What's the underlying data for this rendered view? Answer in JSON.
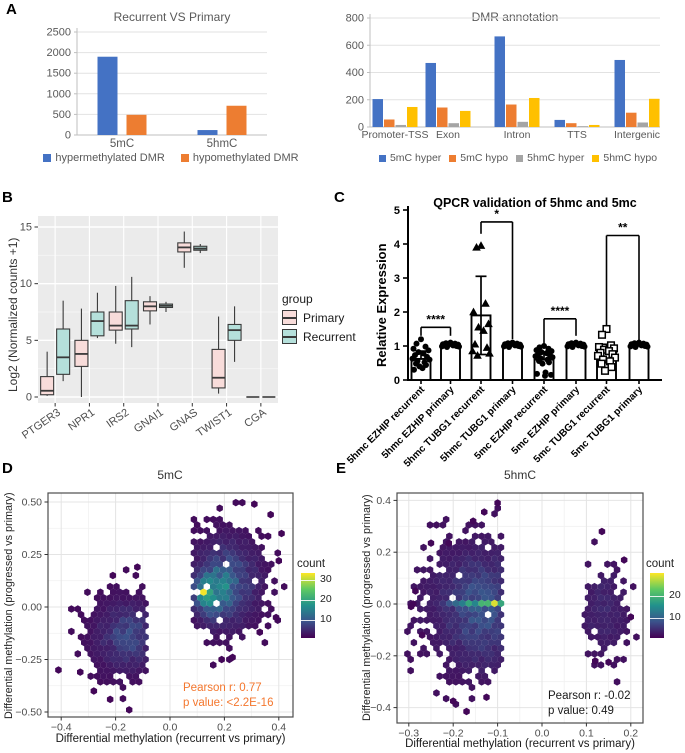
{
  "figure": {
    "background": "#ffffff"
  },
  "panels": {
    "a": {
      "letter": "A"
    },
    "b": {
      "letter": "B"
    },
    "c": {
      "letter": "C"
    },
    "d": {
      "letter": "D"
    },
    "e": {
      "letter": "E"
    }
  },
  "chart_data": [
    {
      "id": "recurrent_vs_primary",
      "type": "bar",
      "title": "Recurrent VS Primary",
      "categories": [
        "5mC",
        "5hmC"
      ],
      "series": [
        {
          "name": "hypermethylated DMR",
          "color": "#4472C4",
          "values": [
            1900,
            120
          ]
        },
        {
          "name": "hypomethylated DMR",
          "color": "#ED7D31",
          "values": [
            490,
            710
          ]
        }
      ],
      "ylim": [
        0,
        2500
      ],
      "ytick_step": 500,
      "grid": true,
      "legend_position": "bottom"
    },
    {
      "id": "dmr_annotation",
      "type": "bar",
      "title": "DMR annotation",
      "categories": [
        "Promoter-TSS",
        "Exon",
        "Intron",
        "TTS",
        "Intergenic"
      ],
      "series": [
        {
          "name": "5mC hyper",
          "color": "#4472C4",
          "values": [
            205,
            470,
            665,
            52,
            492
          ]
        },
        {
          "name": "5mC hypo",
          "color": "#ED7D31",
          "values": [
            55,
            143,
            165,
            28,
            105
          ]
        },
        {
          "name": "5hmC hyper",
          "color": "#A5A5A5",
          "values": [
            15,
            28,
            38,
            6,
            33
          ]
        },
        {
          "name": "5hmC hypo",
          "color": "#FFC000",
          "values": [
            147,
            118,
            213,
            15,
            207
          ]
        }
      ],
      "ylim": [
        0,
        800
      ],
      "ytick_step": 200,
      "grid": true,
      "legend_position": "bottom"
    },
    {
      "id": "expression_boxplot",
      "type": "boxplot",
      "ylabel": "Log2 (Normalized counts +1)",
      "legend_title": "group",
      "groups": [
        {
          "name": "Primary",
          "fill": "#F8DCDA"
        },
        {
          "name": "Recurrent",
          "fill": "#B5E0DB"
        }
      ],
      "categories": [
        "PTGER3",
        "NPR1",
        "IRS2",
        "GNAI1",
        "GNAS",
        "TWIST1",
        "CGA"
      ],
      "ylim": [
        0,
        15
      ],
      "yticks": [
        0,
        5,
        10,
        15
      ],
      "boxes": {
        "Primary": [
          {
            "min": 0.1,
            "q1": 0.2,
            "med": 0.55,
            "q3": 1.8,
            "max": 4.0
          },
          {
            "min": 0.0,
            "q1": 2.7,
            "med": 3.8,
            "q3": 5.0,
            "max": 7.8
          },
          {
            "min": 4.7,
            "q1": 5.9,
            "med": 6.3,
            "q3": 7.5,
            "max": 9.8
          },
          {
            "min": 6.4,
            "q1": 7.6,
            "med": 8.0,
            "q3": 8.4,
            "max": 8.9
          },
          {
            "min": 11.4,
            "q1": 12.8,
            "med": 13.2,
            "q3": 13.6,
            "max": 14.6
          },
          {
            "min": 0.3,
            "q1": 0.8,
            "med": 1.7,
            "q3": 4.2,
            "max": 7.1
          },
          {
            "min": 0,
            "q1": 0,
            "med": 0,
            "q3": 0,
            "max": 0
          }
        ],
        "Recurrent": [
          {
            "min": 1.4,
            "q1": 2.0,
            "med": 3.5,
            "q3": 6.0,
            "max": 8.5
          },
          {
            "min": 5.2,
            "q1": 5.4,
            "med": 6.7,
            "q3": 7.5,
            "max": 9.2
          },
          {
            "min": 4.4,
            "q1": 6.0,
            "med": 6.3,
            "q3": 8.5,
            "max": 10.6
          },
          {
            "min": 7.5,
            "q1": 7.9,
            "med": 8.05,
            "q3": 8.2,
            "max": 8.4
          },
          {
            "min": 12.7,
            "q1": 12.95,
            "med": 13.1,
            "q3": 13.3,
            "max": 13.5
          },
          {
            "min": 3.1,
            "q1": 5.0,
            "med": 5.9,
            "q3": 6.4,
            "max": 8.0
          },
          {
            "min": 0,
            "q1": 0,
            "med": 0,
            "q3": 0,
            "max": 0
          }
        ]
      }
    },
    {
      "id": "qpcr",
      "type": "prism-bar",
      "title": "QPCR validation of 5hmc and 5mc",
      "ylabel": "Relative Expression",
      "ylim": [
        0,
        5
      ],
      "yticks": [
        0,
        1,
        2,
        3,
        4,
        5
      ],
      "categories": [
        "5hmc EZHIP recurrent",
        "5hmc EZHIP primary",
        "5hmc TUBG1 recurrent",
        "5hmc TUBG1 primary",
        "5mc EZHIP recurrent",
        "5mc EZHIP primary",
        "5mc TUBG1 recurrent",
        "5mc TUBG1 primary"
      ],
      "bar_means": [
        0.62,
        1.05,
        1.9,
        1.03,
        0.6,
        1.03,
        0.9,
        1.03
      ],
      "error_bars": [
        [
          null,
          0.85
        ],
        [
          null,
          1.1
        ],
        [
          0.75,
          3.05
        ],
        [
          null,
          1.1
        ],
        [
          null,
          0.82
        ],
        [
          null,
          1.1
        ],
        [
          null,
          1.05
        ],
        [
          null,
          1.1
        ]
      ],
      "markers": [
        "circle",
        "circle",
        "triangle",
        "circle",
        "circle",
        "circle",
        "square-open",
        "circle"
      ],
      "points": [
        [
          1.2,
          1.07,
          0.98,
          0.92,
          0.87,
          0.82,
          0.78,
          0.73,
          0.68,
          0.63,
          0.6,
          0.56,
          0.52,
          0.48,
          0.44,
          0.4,
          0.35,
          0.3
        ],
        [
          1.1,
          1.08,
          1.07,
          1.05,
          1.04,
          1.03,
          1.02,
          1.01,
          1.0,
          0.99,
          0.98,
          0.97
        ],
        [
          3.95,
          3.9,
          2.25,
          2.0,
          1.65,
          1.55,
          1.45,
          1.05,
          0.95,
          0.85,
          0.78,
          0.72
        ],
        [
          1.1,
          1.08,
          1.07,
          1.05,
          1.04,
          1.03,
          1.02,
          1.01,
          1.0,
          0.99,
          0.98,
          0.97
        ],
        [
          1.0,
          0.96,
          0.92,
          0.88,
          0.85,
          0.82,
          0.79,
          0.76,
          0.73,
          0.7,
          0.67,
          0.64,
          0.6,
          0.56,
          0.52,
          0.48,
          0.22,
          0.18,
          0.15,
          0.12
        ],
        [
          1.1,
          1.08,
          1.07,
          1.05,
          1.04,
          1.03,
          1.02,
          1.01,
          1.0,
          0.99,
          0.98,
          0.97
        ],
        [
          1.5,
          1.33,
          1.02,
          0.97,
          0.93,
          0.89,
          0.85,
          0.8,
          0.76,
          0.71,
          0.66,
          0.6,
          0.55,
          0.48,
          0.38,
          0.27
        ],
        [
          1.1,
          1.08,
          1.07,
          1.05,
          1.04,
          1.03,
          1.02,
          1.01,
          1.0,
          0.99,
          0.98,
          0.97
        ]
      ],
      "brackets": [
        {
          "from": 0,
          "to": 1,
          "top": 1.55,
          "leg_from": 1.3,
          "leg_to": 1.3,
          "label": "****"
        },
        {
          "from": 2,
          "to": 3,
          "top": 4.65,
          "leg_from": 4.3,
          "leg_to": 1.2,
          "label": "*"
        },
        {
          "from": 4,
          "to": 5,
          "top": 1.8,
          "leg_from": 1.05,
          "leg_to": 1.3,
          "label": "****"
        },
        {
          "from": 6,
          "to": 7,
          "top": 4.25,
          "leg_from": 1.6,
          "leg_to": 1.15,
          "label": "**"
        }
      ]
    },
    {
      "id": "hexbin_5mc",
      "type": "hexbin",
      "title": "5mC",
      "xlabel": "Differential methylation (recurrent vs primary)",
      "ylabel": "Differential methylation (progressed vs primary)",
      "xticks": [
        -0.4,
        -0.2,
        0,
        0.2,
        0.4
      ],
      "xtick_labels": [
        "−0.4",
        "−0.2",
        "0.0",
        "0.2",
        "0.4"
      ],
      "yticks": [
        0.5,
        0.25,
        0,
        -0.25,
        -0.5
      ],
      "ytick_labels": [
        "0.50",
        "0.25",
        "0.00",
        "−0.25",
        "−0.50"
      ],
      "legend_title": "count",
      "legend_ticks": [
        30,
        20,
        10
      ],
      "count_max": 34,
      "annotation": {
        "lines": [
          "Pearson r: 0.77",
          "p value: <2.2E-16"
        ],
        "color": "#F4772E"
      },
      "stats": {
        "pearson_r": "0.77",
        "p_value": "<2.2E-16"
      },
      "domain": {
        "x": [
          -0.43,
          0.43
        ],
        "y": [
          -0.51,
          0.51
        ],
        "gap_x": [
          -0.08,
          0.082
        ]
      },
      "clusters": [
        {
          "cx": -0.17,
          "cy": -0.14,
          "sx": 0.075,
          "sy": 0.11,
          "amp": 6
        },
        {
          "cx": -0.14,
          "cy": -0.13,
          "sx": 0.04,
          "sy": 0.07,
          "amp": 4
        },
        {
          "cx": 0.21,
          "cy": 0.12,
          "sx": 0.075,
          "sy": 0.13,
          "amp": 10
        },
        {
          "cx": 0.16,
          "cy": 0.07,
          "sx": 0.045,
          "sy": 0.07,
          "amp": 14
        },
        {
          "cx": 0.125,
          "cy": 0.06,
          "sx": 0.018,
          "sy": 0.035,
          "amp": 22
        }
      ],
      "extra_points": [
        [
          -0.41,
          -0.3
        ],
        [
          -0.15,
          -0.49
        ],
        [
          -0.28,
          -0.4
        ],
        [
          -0.22,
          -0.44
        ],
        [
          -0.33,
          -0.31
        ],
        [
          0.4,
          0.22
        ],
        [
          0.37,
          0.44
        ],
        [
          0.31,
          0.49
        ],
        [
          0.39,
          -0.05
        ],
        [
          0.33,
          -0.12
        ],
        [
          0.19,
          -0.25
        ],
        [
          0.23,
          -0.24
        ],
        [
          -0.12,
          0.19
        ],
        [
          -0.21,
          0.15
        ],
        [
          0.41,
          0.35
        ]
      ]
    },
    {
      "id": "hexbin_5hmc",
      "type": "hexbin",
      "title": "5hmC",
      "xlabel": "Differential methylation (recurrent vs primary)",
      "ylabel": "Differential methylation (progressed vs primary)",
      "xticks": [
        -0.3,
        -0.2,
        -0.1,
        0,
        0.1,
        0.2
      ],
      "xtick_labels": [
        "−0.3",
        "−0.2",
        "−0.1",
        "0.0",
        "0.1",
        "0.2"
      ],
      "yticks": [
        0.4,
        0.2,
        0,
        -0.2,
        -0.4
      ],
      "ytick_labels": [
        "0.4",
        "0.2",
        "0.0",
        "−0.2",
        "−0.4"
      ],
      "legend_title": "count",
      "legend_ticks": [
        20,
        10
      ],
      "count_max": 24,
      "annotation": {
        "lines": [
          "Pearson r: -0.02",
          "p value: 0.49"
        ],
        "color": "#1a1a1a"
      },
      "stats": {
        "pearson_r": "-0.02",
        "p_value": "0.49"
      },
      "domain": {
        "x": [
          -0.305,
          0.215
        ],
        "y": [
          -0.425,
          0.395
        ],
        "gap_x": [
          -0.088,
          0.096
        ]
      },
      "clusters": [
        {
          "cx": -0.135,
          "cy": -0.02,
          "sx": 0.045,
          "sy": 0.13,
          "amp": 5
        },
        {
          "cx": -0.17,
          "cy": 0.0,
          "sx": 0.08,
          "sy": 0.15,
          "amp": 2.2
        },
        {
          "cx": -0.14,
          "cy": 0.0,
          "sx": 0.045,
          "sy": 0.006,
          "amp": 10
        },
        {
          "cx": -0.103,
          "cy": 0.0,
          "sx": 0.008,
          "sy": 0.006,
          "amp": 26
        },
        {
          "cx": 0.14,
          "cy": -0.02,
          "sx": 0.035,
          "sy": 0.11,
          "amp": 2.6
        }
      ],
      "extra_points": [
        [
          0.135,
          0.28
        ],
        [
          -0.285,
          0.05
        ],
        [
          -0.295,
          -0.01
        ],
        [
          -0.25,
          0.235
        ],
        [
          -0.21,
          0.235
        ],
        [
          -0.1,
          0.39
        ],
        [
          -0.13,
          0.355
        ],
        [
          -0.155,
          0.32
        ],
        [
          -0.2,
          -0.375
        ],
        [
          -0.17,
          -0.415
        ],
        [
          -0.125,
          -0.36
        ],
        [
          0.15,
          -0.225
        ],
        [
          0.12,
          -0.22
        ],
        [
          0.185,
          0.17
        ],
        [
          0.2,
          -0.05
        ],
        [
          -0.27,
          -0.12
        ],
        [
          -0.29,
          0.0
        ]
      ]
    }
  ]
}
